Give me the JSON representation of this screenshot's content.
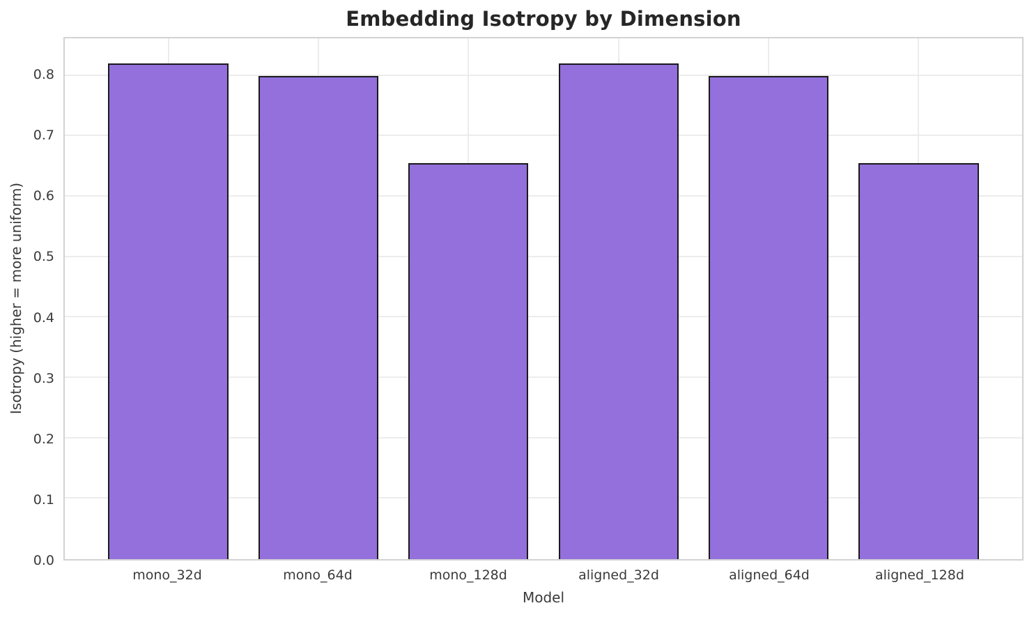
{
  "chart_data": {
    "type": "bar",
    "title": "Embedding Isotropy by Dimension",
    "xlabel": "Model",
    "ylabel": "Isotropy (higher = more uniform)",
    "categories": [
      "mono_32d",
      "mono_64d",
      "mono_128d",
      "aligned_32d",
      "aligned_64d",
      "aligned_128d"
    ],
    "values": [
      0.82,
      0.8,
      0.655,
      0.82,
      0.8,
      0.655
    ],
    "yticks": [
      0.0,
      0.1,
      0.2,
      0.3,
      0.4,
      0.5,
      0.6,
      0.7,
      0.8
    ],
    "ytick_labels": [
      "0.0",
      "0.1",
      "0.2",
      "0.3",
      "0.4",
      "0.5",
      "0.6",
      "0.7",
      "0.8"
    ],
    "ylim": [
      0,
      0.862
    ],
    "xlim": [
      -0.69,
      5.69
    ],
    "bar_width": 0.8,
    "grid": true,
    "legend_position": "none",
    "colors": {
      "bar_fill": "#9370DB",
      "bar_edge": "#1a1a1a",
      "grid": "#ececec",
      "spine": "#d2d2d2",
      "tick_text": "#3a3a3a",
      "title_text": "#262626",
      "background": "#ffffff"
    }
  }
}
